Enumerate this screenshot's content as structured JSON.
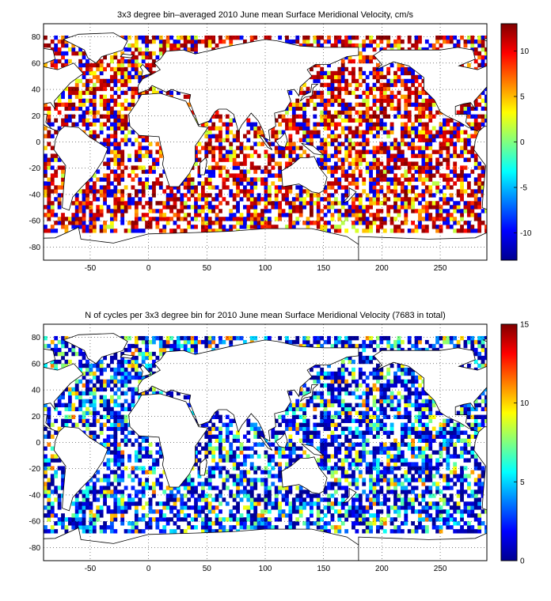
{
  "chart_data": [
    {
      "type": "heatmap",
      "title": "3x3 degree bin–averaged 2010 June mean Surface Meridional Velocity, cm/s",
      "xlim": [
        -90,
        290
      ],
      "ylim": [
        -90,
        90
      ],
      "xticks": [
        -50,
        0,
        50,
        100,
        150,
        200,
        250
      ],
      "yticks": [
        80,
        60,
        40,
        20,
        0,
        -20,
        -40,
        -60,
        -80
      ],
      "grid": "dotted",
      "colorbar": {
        "range": [
          -13,
          13
        ],
        "ticks": [
          10,
          5,
          0,
          -5,
          -10
        ],
        "colormap": "jet"
      },
      "bin_deg": 3,
      "coverage_seed": 11,
      "fill_probability": 0.62
    },
    {
      "type": "heatmap",
      "title": "N of cycles per 3x3 degree bin for 2010 June mean Surface Meridional Velocity (7683 in total)",
      "xlim": [
        -90,
        290
      ],
      "ylim": [
        -90,
        90
      ],
      "xticks": [
        -50,
        0,
        50,
        100,
        150,
        200,
        250
      ],
      "yticks": [
        80,
        60,
        40,
        20,
        0,
        -20,
        -40,
        -60,
        -80
      ],
      "grid": "dotted",
      "colorbar": {
        "range": [
          0,
          15
        ],
        "ticks": [
          15,
          10,
          5,
          0
        ],
        "colormap": "jet"
      },
      "bin_deg": 3,
      "coverage_seed": 11,
      "fill_probability": 0.62
    }
  ],
  "colors": {
    "land_outline": "#000000",
    "background": "#ffffff",
    "jet": [
      "#00008f",
      "#0000ff",
      "#0080ff",
      "#00ffff",
      "#80ff80",
      "#ffff00",
      "#ff8000",
      "#ff0000",
      "#800000"
    ]
  }
}
